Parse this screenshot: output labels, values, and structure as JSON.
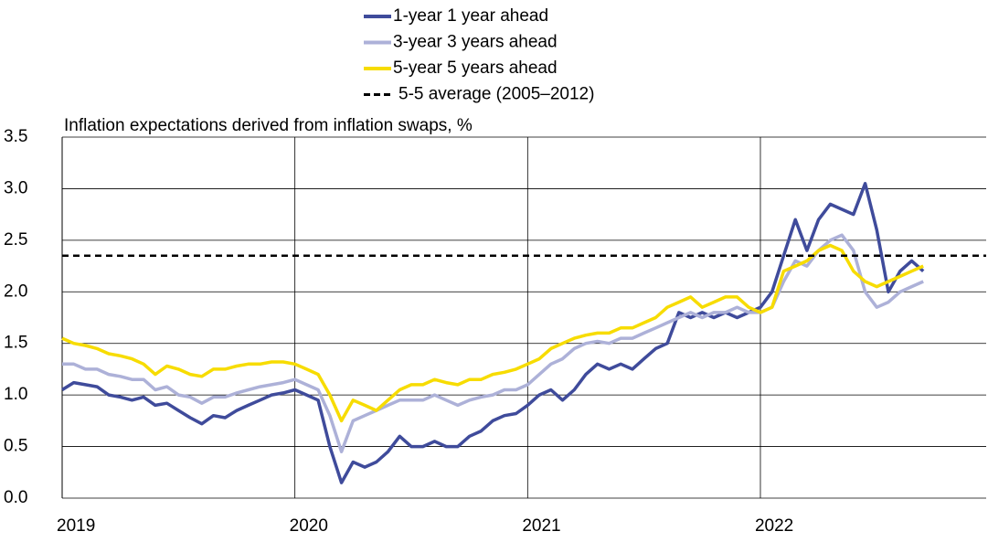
{
  "chart_data": {
    "type": "line",
    "title": "Inflation expectations derived from inflation swaps, %",
    "x": [
      2019.0,
      2019.05,
      2019.1,
      2019.15,
      2019.2,
      2019.25,
      2019.3,
      2019.35,
      2019.4,
      2019.45,
      2019.5,
      2019.55,
      2019.6,
      2019.65,
      2019.7,
      2019.75,
      2019.8,
      2019.85,
      2019.9,
      2019.95,
      2020.0,
      2020.05,
      2020.1,
      2020.15,
      2020.2,
      2020.25,
      2020.3,
      2020.35,
      2020.4,
      2020.45,
      2020.5,
      2020.55,
      2020.6,
      2020.65,
      2020.7,
      2020.75,
      2020.8,
      2020.85,
      2020.9,
      2020.95,
      2021.0,
      2021.05,
      2021.1,
      2021.15,
      2021.2,
      2021.25,
      2021.3,
      2021.35,
      2021.4,
      2021.45,
      2021.5,
      2021.55,
      2021.6,
      2021.65,
      2021.7,
      2021.75,
      2021.8,
      2021.85,
      2021.9,
      2021.95,
      2022.0,
      2022.05,
      2022.1,
      2022.15,
      2022.2,
      2022.25,
      2022.3,
      2022.35,
      2022.4,
      2022.45,
      2022.5,
      2022.55,
      2022.6,
      2022.65,
      2022.7
    ],
    "series": [
      {
        "name": "1-year 1 year ahead",
        "color": "#3f4b9b",
        "values": [
          1.05,
          1.12,
          1.1,
          1.08,
          1.0,
          0.98,
          0.95,
          0.98,
          0.9,
          0.92,
          0.85,
          0.78,
          0.72,
          0.8,
          0.78,
          0.85,
          0.9,
          0.95,
          1.0,
          1.02,
          1.05,
          1.0,
          0.95,
          0.5,
          0.15,
          0.35,
          0.3,
          0.35,
          0.45,
          0.6,
          0.5,
          0.5,
          0.55,
          0.5,
          0.5,
          0.6,
          0.65,
          0.75,
          0.8,
          0.82,
          0.9,
          1.0,
          1.05,
          0.95,
          1.05,
          1.2,
          1.3,
          1.25,
          1.3,
          1.25,
          1.35,
          1.45,
          1.5,
          1.8,
          1.75,
          1.8,
          1.75,
          1.8,
          1.75,
          1.8,
          1.85,
          2.0,
          2.35,
          2.7,
          2.4,
          2.7,
          2.85,
          2.8,
          2.75,
          3.05,
          2.6,
          2.0,
          2.2,
          2.3,
          2.2
        ]
      },
      {
        "name": "3-year 3 years ahead",
        "color": "#adb1d8",
        "values": [
          1.3,
          1.3,
          1.25,
          1.25,
          1.2,
          1.18,
          1.15,
          1.15,
          1.05,
          1.08,
          1.0,
          0.98,
          0.92,
          0.98,
          0.98,
          1.02,
          1.05,
          1.08,
          1.1,
          1.12,
          1.15,
          1.1,
          1.05,
          0.8,
          0.45,
          0.75,
          0.8,
          0.85,
          0.9,
          0.95,
          0.95,
          0.95,
          1.0,
          0.95,
          0.9,
          0.95,
          0.98,
          1.0,
          1.05,
          1.05,
          1.1,
          1.2,
          1.3,
          1.35,
          1.45,
          1.5,
          1.52,
          1.5,
          1.55,
          1.55,
          1.6,
          1.65,
          1.7,
          1.75,
          1.8,
          1.75,
          1.8,
          1.8,
          1.85,
          1.8,
          1.8,
          1.85,
          2.1,
          2.3,
          2.25,
          2.4,
          2.5,
          2.55,
          2.4,
          2.0,
          1.85,
          1.9,
          2.0,
          2.05,
          2.1
        ]
      },
      {
        "name": "5-year 5 years ahead",
        "color": "#f7dc00",
        "values": [
          1.55,
          1.5,
          1.48,
          1.45,
          1.4,
          1.38,
          1.35,
          1.3,
          1.2,
          1.28,
          1.25,
          1.2,
          1.18,
          1.25,
          1.25,
          1.28,
          1.3,
          1.3,
          1.32,
          1.32,
          1.3,
          1.25,
          1.2,
          1.0,
          0.75,
          0.95,
          0.9,
          0.85,
          0.95,
          1.05,
          1.1,
          1.1,
          1.15,
          1.12,
          1.1,
          1.15,
          1.15,
          1.2,
          1.22,
          1.25,
          1.3,
          1.35,
          1.45,
          1.5,
          1.55,
          1.58,
          1.6,
          1.6,
          1.65,
          1.65,
          1.7,
          1.75,
          1.85,
          1.9,
          1.95,
          1.85,
          1.9,
          1.95,
          1.95,
          1.85,
          1.8,
          1.85,
          2.2,
          2.25,
          2.3,
          2.4,
          2.45,
          2.4,
          2.2,
          2.1,
          2.05,
          2.1,
          2.15,
          2.2,
          2.25
        ]
      }
    ],
    "hlines": [
      {
        "name": "5-5 average (2005–2012)",
        "value": 2.35,
        "color": "#000000",
        "dashed": true
      }
    ],
    "xlim": [
      2019,
      2022.97
    ],
    "xticks": [
      2019,
      2020,
      2021,
      2022
    ],
    "ylim": [
      0,
      3.5
    ],
    "yticks": [
      {
        "value": 0,
        "label": "0.0"
      },
      0.5,
      {
        "value": 1,
        "label": "1.0"
      },
      1.5,
      {
        "value": 2,
        "label": "2.0"
      },
      2.5,
      {
        "value": 3,
        "label": "3.0"
      },
      3.5
    ],
    "grid": true
  }
}
